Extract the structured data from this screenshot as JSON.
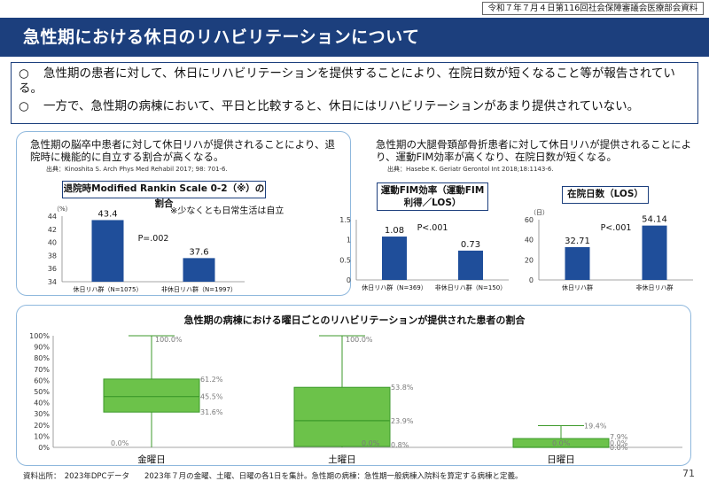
{
  "header": {
    "meeting": "令和７年７月４日第116回社会保障審議会医療部会資料",
    "title": "急性期における休日のリハビリテーションについて"
  },
  "summary": {
    "bullet": "○",
    "line1": "急性期の患者に対して、休日にリハビリテーションを提供することにより、在院日数が短くなること等が報告されている。",
    "line2": "一方で、急性期の病棟において、平日と比較すると、休日にはリハビリテーションがあまり提供されていない。"
  },
  "study_stroke": {
    "text": "急性期の脳卒中患者に対して休日リハが提供されることにより、退院時に機能的に自立する割合が高くなる。",
    "citation": "出典：Kinoshita S. Arch Phys Med Rehabil 2017; 98: 701-6."
  },
  "study_hip": {
    "text": "急性期の大腿骨頚部骨折患者に対して休日リハが提供されることにより、運動FIM効率が高くなり、在院日数が短くなる。",
    "citation": "出典：Hasebe K. Geriatr Gerontol Int 2018;18:1143-6."
  },
  "footer": {
    "source": "資料出所：　2023年DPCデータ　　2023年７月の金曜、土曜、日曜の各1日を集計。急性期の病棟：急性期一般病棟入院料を算定する病棟と定義。",
    "page": "71"
  },
  "chart_data": [
    {
      "type": "bar",
      "title": "退院時Modified Rankin Scale 0-2（※）の割合",
      "note": "※少なくとも日常生活は自立",
      "ylabel": "（%）",
      "ylim": [
        34,
        44
      ],
      "yticks": [
        34,
        36,
        38,
        40,
        42,
        44
      ],
      "categories": [
        "休日リハ群（N=1075）",
        "非休日リハ群（N=1997）"
      ],
      "values": [
        43.4,
        37.6
      ],
      "value_labels": [
        "43.4",
        "37.6"
      ],
      "pvalue": "P=.002",
      "color": "#1f4e9a"
    },
    {
      "type": "bar",
      "title": "運動FIM効率（運動FIM利得／LOS）",
      "ylabel": "",
      "ylim": [
        0,
        1.5
      ],
      "yticks": [
        0,
        0.5,
        1,
        1.5
      ],
      "ytick_labels": [
        "0",
        "0.5",
        "1",
        "1.5"
      ],
      "categories": [
        "休日リハ群（N=369）",
        "非休日リハ群（N=150）"
      ],
      "values": [
        1.08,
        0.73
      ],
      "value_labels": [
        "1.08",
        "0.73"
      ],
      "pvalue": "P<.001",
      "color": "#1f4e9a"
    },
    {
      "type": "bar",
      "title": "在院日数（LOS）",
      "ylabel": "（日）",
      "ylim": [
        0,
        60
      ],
      "yticks": [
        0,
        20,
        40,
        60
      ],
      "categories": [
        "休日リハ群",
        "非休日リハ群"
      ],
      "values": [
        32.71,
        54.14
      ],
      "value_labels": [
        "32.71",
        "54.14"
      ],
      "pvalue": "P<.001",
      "color": "#1f4e9a"
    },
    {
      "type": "box",
      "title": "急性期の病棟における曜日ごとのリハビリテーションが提供された患者の割合",
      "ylim": [
        0,
        100
      ],
      "yticks": [
        0,
        10,
        20,
        30,
        40,
        50,
        60,
        70,
        80,
        90,
        100
      ],
      "ytick_labels": [
        "0%",
        "10%",
        "20%",
        "30%",
        "40%",
        "50%",
        "60%",
        "70%",
        "80%",
        "90%",
        "100%"
      ],
      "categories": [
        "金曜日",
        "土曜日",
        "日曜日"
      ],
      "boxes": [
        {
          "min": 0.0,
          "q1": 31.6,
          "median": 45.5,
          "q3": 61.2,
          "max": 100.0,
          "labels": {
            "min": "0.0%",
            "q1": "31.6%",
            "median": "45.5%",
            "q3": "61.2%",
            "max": "100.0%"
          }
        },
        {
          "min": 0.0,
          "q1": 0.8,
          "median": 23.9,
          "q3": 53.8,
          "max": 100.0,
          "labels": {
            "min": "0.0%",
            "q1": "0.8%",
            "median": "23.9%",
            "q3": "53.8%",
            "max": "100.0%"
          }
        },
        {
          "min": 0.0,
          "q1": 0.0,
          "median": 0.0,
          "q3": 7.9,
          "max": 19.4,
          "labels": {
            "min": "0.0%",
            "q1": "0.0%",
            "median": "0.0%",
            "q3": "7.9%",
            "max": "19.4%"
          }
        }
      ],
      "fill_color": "#6cc24a",
      "stroke_color": "#3d9a2b"
    }
  ]
}
